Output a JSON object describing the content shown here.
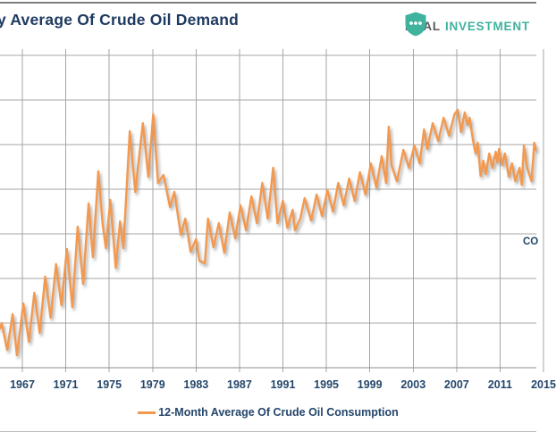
{
  "header": {
    "title": "y Average Of Crude Oil Demand",
    "logo": {
      "brand_left": "REAL",
      "brand_right": "INVESTMENT",
      "shield_color": "#3fb39e",
      "shield_dot_color": "#ffffff"
    }
  },
  "annotation": {
    "text": "CO"
  },
  "legend": {
    "label": "12-Month Average Of Crude Oil Consumption",
    "swatch_color": "#f3994f"
  },
  "colors": {
    "accent_orange": "#f3994f",
    "navy_text": "#24466b",
    "title_navy": "#1f3a60",
    "grid_gray": "#a6a6a6",
    "axis_gray": "#8c8c8c",
    "logo_teal": "#3fb39e",
    "logo_gray": "#58595b"
  },
  "chart_data": {
    "type": "line",
    "title": "y Average Of Crude Oil Demand",
    "x_tick_labels": [
      "1967",
      "1971",
      "1975",
      "1979",
      "1983",
      "1987",
      "1991",
      "1995",
      "1999",
      "2003",
      "2007",
      "2011",
      "2015"
    ],
    "x_tick_years": [
      1967,
      1971,
      1975,
      1979,
      1983,
      1987,
      1991,
      1995,
      1999,
      2003,
      2007,
      2011,
      2015
    ],
    "x_range_years": [
      1964.95,
      2014.3
    ],
    "ylim": [
      0,
      7
    ],
    "y_axis": "tick labels cropped out of frame; values expressed in gridline units 0-7",
    "grid": true,
    "legend_position": "bottom",
    "series": [
      {
        "name": "12-Month Average Of Crude Oil Consumption",
        "color": "#f3994f",
        "points": [
          [
            1964.95,
            0.88
          ],
          [
            1965.1,
            1.0
          ],
          [
            1965.6,
            0.4
          ],
          [
            1966.1,
            1.2
          ],
          [
            1966.5,
            0.28
          ],
          [
            1967.1,
            1.44
          ],
          [
            1967.6,
            0.58
          ],
          [
            1968.1,
            1.68
          ],
          [
            1968.6,
            0.78
          ],
          [
            1969.1,
            2.04
          ],
          [
            1969.6,
            1.12
          ],
          [
            1970.1,
            2.32
          ],
          [
            1970.6,
            1.4
          ],
          [
            1971.1,
            2.66
          ],
          [
            1971.6,
            1.36
          ],
          [
            1972.1,
            3.16
          ],
          [
            1972.6,
            1.88
          ],
          [
            1973.1,
            3.68
          ],
          [
            1973.5,
            2.48
          ],
          [
            1974.0,
            4.4
          ],
          [
            1974.4,
            3.2
          ],
          [
            1974.7,
            2.68
          ],
          [
            1975.1,
            3.76
          ],
          [
            1975.6,
            2.24
          ],
          [
            1976.0,
            3.28
          ],
          [
            1976.3,
            2.68
          ],
          [
            1976.9,
            5.3
          ],
          [
            1977.4,
            3.94
          ],
          [
            1978.1,
            5.48
          ],
          [
            1978.6,
            4.28
          ],
          [
            1979.05,
            5.68
          ],
          [
            1979.5,
            4.14
          ],
          [
            1980.0,
            4.32
          ],
          [
            1980.6,
            3.6
          ],
          [
            1981.0,
            3.94
          ],
          [
            1981.6,
            2.98
          ],
          [
            1982.0,
            3.34
          ],
          [
            1982.5,
            2.6
          ],
          [
            1983.0,
            2.88
          ],
          [
            1983.3,
            2.4
          ],
          [
            1983.8,
            2.34
          ],
          [
            1984.1,
            3.34
          ],
          [
            1984.6,
            2.7
          ],
          [
            1985.1,
            3.24
          ],
          [
            1985.6,
            2.58
          ],
          [
            1986.1,
            3.48
          ],
          [
            1986.6,
            2.9
          ],
          [
            1987.1,
            3.64
          ],
          [
            1987.6,
            3.08
          ],
          [
            1988.1,
            3.84
          ],
          [
            1988.6,
            3.24
          ],
          [
            1989.1,
            4.14
          ],
          [
            1989.6,
            3.34
          ],
          [
            1990.1,
            4.48
          ],
          [
            1990.5,
            3.24
          ],
          [
            1991.0,
            3.74
          ],
          [
            1991.4,
            3.14
          ],
          [
            1991.9,
            3.54
          ],
          [
            1992.1,
            3.08
          ],
          [
            1992.6,
            3.34
          ],
          [
            1993.0,
            3.8
          ],
          [
            1993.6,
            3.3
          ],
          [
            1994.1,
            3.88
          ],
          [
            1994.6,
            3.4
          ],
          [
            1995.1,
            3.98
          ],
          [
            1995.6,
            3.5
          ],
          [
            1996.1,
            4.14
          ],
          [
            1996.6,
            3.64
          ],
          [
            1997.1,
            4.24
          ],
          [
            1997.6,
            3.74
          ],
          [
            1998.1,
            4.38
          ],
          [
            1998.6,
            3.88
          ],
          [
            1999.1,
            4.58
          ],
          [
            1999.6,
            4.04
          ],
          [
            2000.1,
            4.74
          ],
          [
            2000.5,
            4.14
          ],
          [
            2000.75,
            5.4
          ],
          [
            2001.0,
            4.54
          ],
          [
            2001.5,
            4.18
          ],
          [
            2002.1,
            4.88
          ],
          [
            2002.6,
            4.48
          ],
          [
            2003.1,
            4.98
          ],
          [
            2003.6,
            4.58
          ],
          [
            2004.0,
            5.34
          ],
          [
            2004.3,
            4.9
          ],
          [
            2004.8,
            5.48
          ],
          [
            2005.3,
            5.08
          ],
          [
            2005.8,
            5.6
          ],
          [
            2006.3,
            5.2
          ],
          [
            2006.8,
            5.68
          ],
          [
            2007.1,
            5.78
          ],
          [
            2007.4,
            5.28
          ],
          [
            2007.75,
            5.72
          ],
          [
            2008.0,
            5.44
          ],
          [
            2008.2,
            5.6
          ],
          [
            2008.5,
            5.1
          ],
          [
            2008.75,
            4.8
          ],
          [
            2008.95,
            5.04
          ],
          [
            2009.2,
            4.3
          ],
          [
            2009.45,
            4.64
          ],
          [
            2009.7,
            4.34
          ],
          [
            2010.0,
            4.8
          ],
          [
            2010.3,
            4.48
          ],
          [
            2010.6,
            4.84
          ],
          [
            2010.75,
            4.6
          ],
          [
            2010.9,
            4.9
          ],
          [
            2011.2,
            4.54
          ],
          [
            2011.45,
            4.8
          ],
          [
            2011.8,
            4.28
          ],
          [
            2012.1,
            4.58
          ],
          [
            2012.4,
            4.18
          ],
          [
            2012.8,
            4.48
          ],
          [
            2013.0,
            4.1
          ],
          [
            2013.2,
            4.98
          ],
          [
            2013.5,
            4.48
          ],
          [
            2013.9,
            4.18
          ],
          [
            2014.15,
            5.04
          ],
          [
            2014.3,
            4.88
          ]
        ]
      }
    ]
  }
}
